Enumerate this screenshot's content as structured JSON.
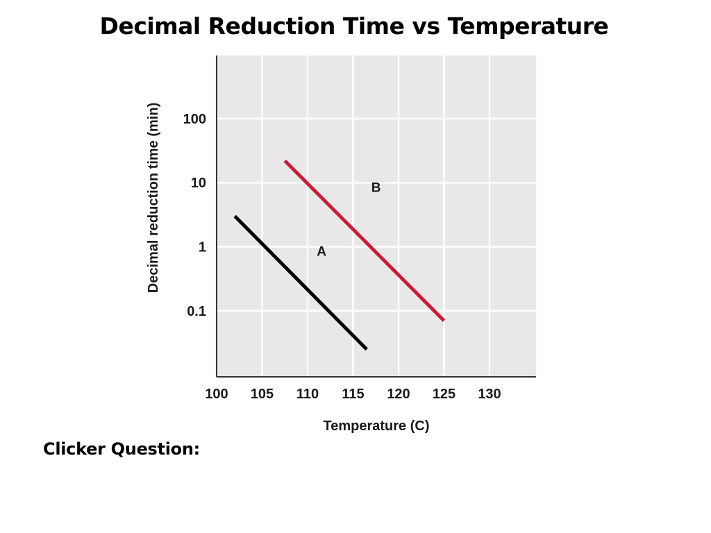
{
  "slide": {
    "title": "Decimal Reduction Time vs Temperature",
    "question_label": "Clicker Question:"
  },
  "chart_data": {
    "type": "line",
    "title": "",
    "xlabel": "Temperature (C)",
    "ylabel": "Decimal reduction time (min)",
    "xlim": [
      100,
      135
    ],
    "ylim": [
      0.01,
      1000
    ],
    "yscale": "log",
    "x_ticks": [
      100,
      105,
      110,
      115,
      120,
      125,
      130
    ],
    "y_ticks": [
      0.1,
      1,
      10,
      100
    ],
    "y_tick_labels": [
      "0.1",
      "1",
      "10",
      "100"
    ],
    "grid": true,
    "plot_background": "#e9e7e8",
    "grid_color": "#ffffff",
    "series": [
      {
        "name": "A",
        "color": "#000000",
        "x": [
          102,
          116.5
        ],
        "y": [
          3.0,
          0.025
        ]
      },
      {
        "name": "B",
        "color": "#c41e3a",
        "x": [
          107.5,
          125
        ],
        "y": [
          22,
          0.07
        ]
      }
    ],
    "annotations": [
      {
        "text": "A",
        "x": 112,
        "y": 0.9
      },
      {
        "text": "B",
        "x": 118,
        "y": 9
      }
    ]
  }
}
